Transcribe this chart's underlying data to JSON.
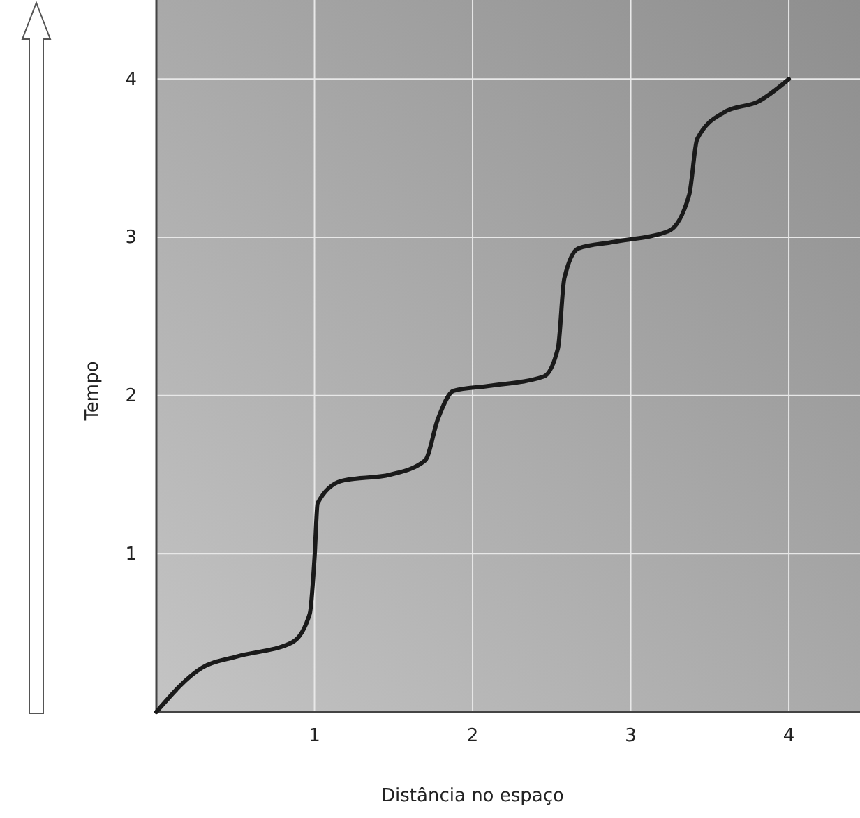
{
  "chart_data": {
    "type": "line",
    "xlabel": "Distância no espaço",
    "ylabel": "Tempo",
    "xlim": [
      0,
      4.45
    ],
    "ylim": [
      0,
      4.5
    ],
    "xticks": [
      1,
      2,
      3,
      4
    ],
    "yticks": [
      1,
      2,
      3,
      4
    ],
    "grid": true,
    "x": [
      0,
      0.29,
      0.51,
      0.86,
      0.97,
      1,
      1.02,
      1.17,
      1.48,
      1.7,
      1.78,
      1.88,
      2.1,
      2.45,
      2.54,
      2.58,
      2.67,
      2.89,
      3.24,
      3.37,
      3.42,
      3.59,
      3.81,
      4
    ],
    "series": [
      {
        "color": "#1a1a1a",
        "values": [
          0,
          0.28,
          0.35,
          0.44,
          0.62,
          0.97,
          1.32,
          1.46,
          1.5,
          1.59,
          1.85,
          2.03,
          2.06,
          2.12,
          2.3,
          2.74,
          2.93,
          2.97,
          3.04,
          3.27,
          3.62,
          3.79,
          3.86,
          4
        ]
      }
    ]
  }
}
